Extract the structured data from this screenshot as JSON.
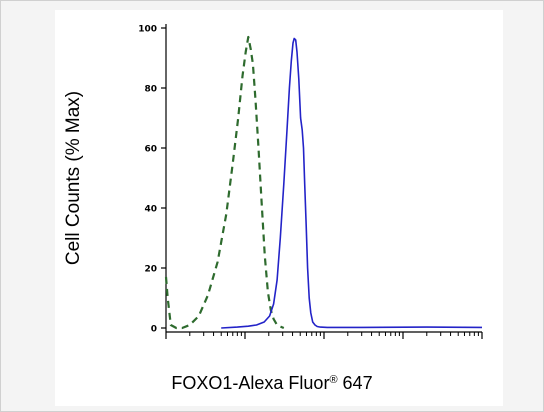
{
  "chart_data": {
    "type": "line",
    "title": "",
    "ylabel": "Cell Counts (% Max)",
    "xlabel": {
      "main": "FOXO1-Alexa Fluor",
      "sup": "®",
      "suffix": " 647"
    },
    "xscale": "log",
    "ylim": [
      0,
      100
    ],
    "yticks": [
      "0",
      "20",
      "40",
      "60",
      "80",
      "100"
    ],
    "grid": false,
    "legend": "none",
    "series": [
      {
        "line_style": "dashed",
        "color": "#2e6b2e",
        "x": [
          1.0,
          1.05,
          1.15,
          1.35,
          1.6,
          2.0,
          2.6,
          3.4,
          4.5,
          5.8,
          7.0,
          8.2,
          9.3,
          10.2,
          11.0,
          11.8,
          12.6,
          13.6,
          14.8,
          16.2,
          17.8,
          19.5,
          21.2,
          23.0,
          25.5,
          28.0,
          31.0
        ],
        "y": [
          17,
          10,
          1,
          0,
          0,
          1,
          4,
          11,
          22,
          38,
          55,
          70,
          84,
          92,
          97,
          93,
          88,
          76,
          60,
          42,
          24,
          12,
          6,
          3,
          1,
          0.5,
          0
        ]
      },
      {
        "line_style": "solid",
        "color": "#2323c8",
        "x": [
          5.0,
          8.0,
          11.0,
          14.0,
          17.5,
          20.5,
          23.0,
          25.5,
          28.0,
          31.0,
          34.0,
          36.5,
          38.5,
          40.5,
          42.0,
          43.8,
          45.5,
          48.0,
          50.5,
          53.0,
          55.0,
          57.0,
          59.5,
          62.0,
          65.0,
          68.0,
          72.0,
          77.0,
          82.0,
          90.0,
          110.0,
          300.0,
          2000.0,
          10000.0
        ],
        "y": [
          0,
          0.3,
          0.6,
          1,
          2,
          4,
          8,
          16,
          30,
          48,
          66,
          80,
          89,
          95,
          96.5,
          96,
          92,
          83,
          70,
          66,
          60,
          48,
          34,
          20,
          10,
          5,
          2,
          1,
          0.5,
          0.3,
          0.2,
          0.2,
          0.3,
          0.2
        ]
      }
    ]
  }
}
